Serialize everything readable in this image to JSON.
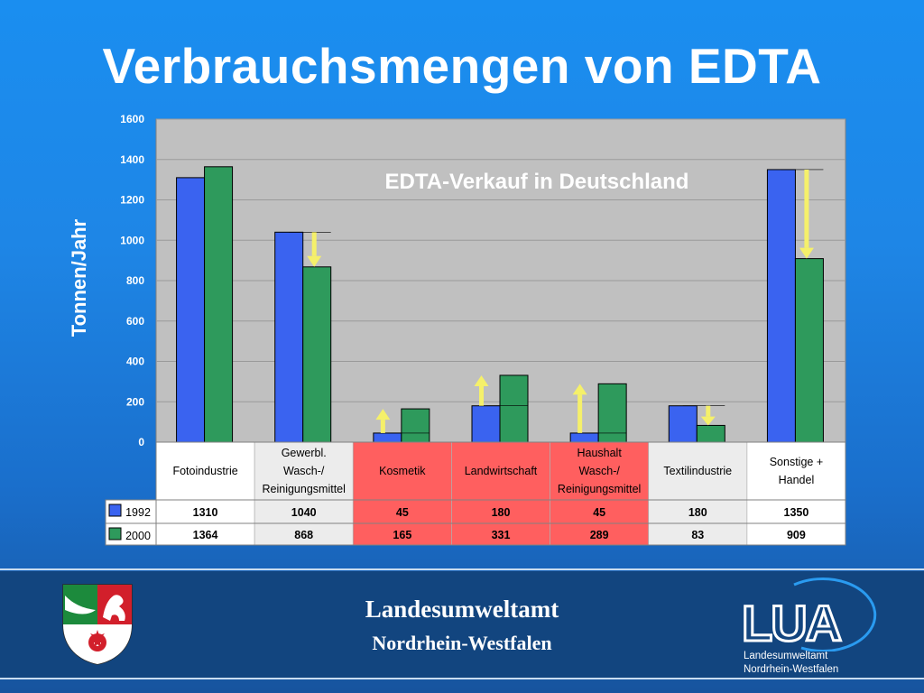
{
  "title": "Verbrauchsmengen von EDTA",
  "footer": {
    "org_line1": "Landesumweltamt",
    "org_line2": "Nordrhein-Westfalen",
    "logo_text": "LUA",
    "logo_caption1": "Landesumweltamt",
    "logo_caption2": "Nordrhein-Westfalen"
  },
  "colors": {
    "series_1992": "#3a63f0",
    "series_2000": "#2e9a5c",
    "arrow": "#f5f06a",
    "plot_bg": "#c0c0c0",
    "highlight_cell": "#ff5f5f"
  },
  "chart_data": {
    "type": "bar",
    "title": "EDTA-Verkauf in Deutschland",
    "ylabel": "Tonnen/Jahr",
    "xlabel": "",
    "ylim": [
      0,
      1600
    ],
    "yticks": [
      0,
      200,
      400,
      600,
      800,
      1000,
      1200,
      1400,
      1600
    ],
    "grid": true,
    "categories": [
      "Fotoindustrie",
      "Gewerbl. Wasch-/ Reinigungsmittel",
      "Kosmetik",
      "Landwirtschaft",
      "Haushalt Wasch-/ Reinigungsmittel",
      "Textilindustrie",
      "Sonstige + Handel"
    ],
    "category_lines": [
      [
        "Fotoindustrie"
      ],
      [
        "Gewerbl.",
        "Wasch-/",
        "Reinigungsmittel"
      ],
      [
        "Kosmetik"
      ],
      [
        "Landwirtschaft"
      ],
      [
        "Haushalt",
        "Wasch-/",
        "Reinigungsmittel"
      ],
      [
        "Textilindustrie"
      ],
      [
        "Sonstige +",
        "Handel"
      ]
    ],
    "highlighted_categories": [
      2,
      3,
      4
    ],
    "series": [
      {
        "name": "1992",
        "values": [
          1310,
          1040,
          45,
          180,
          45,
          180,
          1350
        ]
      },
      {
        "name": "2000",
        "values": [
          1364,
          868,
          165,
          331,
          289,
          83,
          909
        ]
      }
    ],
    "table_labels": [
      [
        "1310",
        "1040",
        "45",
        "180",
        "45",
        "180",
        "1350"
      ],
      [
        "1364",
        "868",
        "165",
        "331",
        "289",
        "83",
        "909"
      ]
    ],
    "trend_arrows": [
      "none",
      "down",
      "up",
      "up",
      "up",
      "down",
      "down"
    ]
  }
}
